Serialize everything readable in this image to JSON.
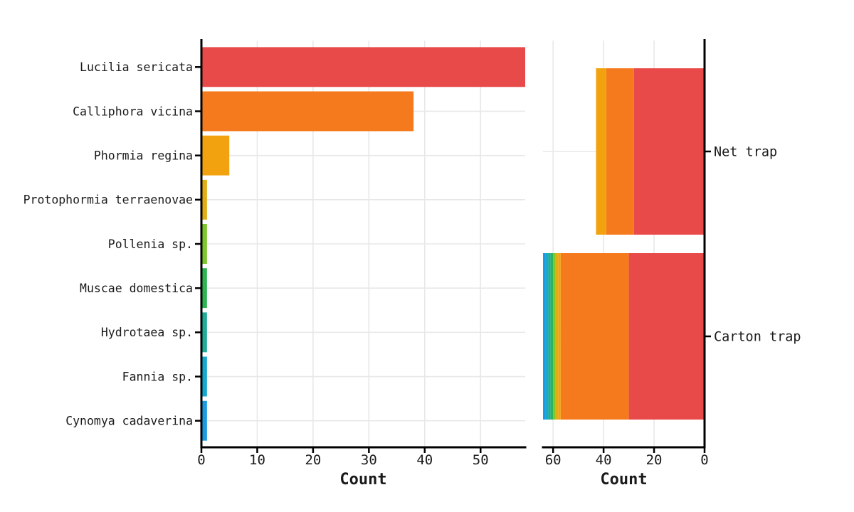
{
  "chart_data": {
    "type": "bar",
    "orientation": "horizontal",
    "background": "#ffffff",
    "gridline_color": "#e8e8e8",
    "axis_color": "#000000",
    "text_color": "#1a1a1a",
    "grid": true,
    "panels": [
      {
        "id": "species-counts",
        "xlabel": "Count",
        "categories": [
          "Lucilia sericata",
          "Calliphora vicina",
          "Phormia regina",
          "Protophormia terraenovae",
          "Pollenia sp.",
          "Muscae domestica",
          "Hydrotaea sp.",
          "Fannia sp.",
          "Cynomya cadaverina"
        ],
        "values": [
          58,
          38,
          5,
          1,
          1,
          1,
          1,
          1,
          1
        ],
        "colors": [
          "#e84a4a",
          "#f57a1e",
          "#f2a20f",
          "#e0ad14",
          "#7dc72d",
          "#2eb551",
          "#21ac99",
          "#17a8d0",
          "#1b9ce2"
        ],
        "x_ticks": [
          0,
          10,
          20,
          30,
          40,
          50
        ],
        "xlim": [
          0,
          58
        ],
        "x_reversed": false,
        "legend": "none"
      },
      {
        "id": "trap-counts",
        "xlabel": "Count",
        "categories": [
          "Net trap",
          "Carton trap"
        ],
        "series": [
          {
            "name": "Lucilia sericata",
            "color": "#e84a4a",
            "values": [
              28,
              30
            ]
          },
          {
            "name": "Calliphora vicina",
            "color": "#f57a1e",
            "values": [
              11,
              27
            ]
          },
          {
            "name": "Phormia regina",
            "color": "#f2a20f",
            "values": [
              4,
              1
            ]
          },
          {
            "name": "Protophormia terraenovae",
            "color": "#e0ad14",
            "values": [
              0,
              1
            ]
          },
          {
            "name": "Pollenia sp.",
            "color": "#7dc72d",
            "values": [
              0,
              1
            ]
          },
          {
            "name": "Muscae domestica",
            "color": "#2eb551",
            "values": [
              0,
              1
            ]
          },
          {
            "name": "Hydrotaea sp.",
            "color": "#21ac99",
            "values": [
              0,
              1
            ]
          },
          {
            "name": "Fannia sp.",
            "color": "#17a8d0",
            "values": [
              0,
              1
            ]
          },
          {
            "name": "Cynomya cadaverina",
            "color": "#1b9ce2",
            "values": [
              0,
              1
            ]
          }
        ],
        "totals": [
          43,
          64
        ],
        "x_ticks": [
          60,
          40,
          20,
          0
        ],
        "xlim": [
          0,
          64
        ],
        "x_reversed": true,
        "legend": "none"
      }
    ]
  }
}
